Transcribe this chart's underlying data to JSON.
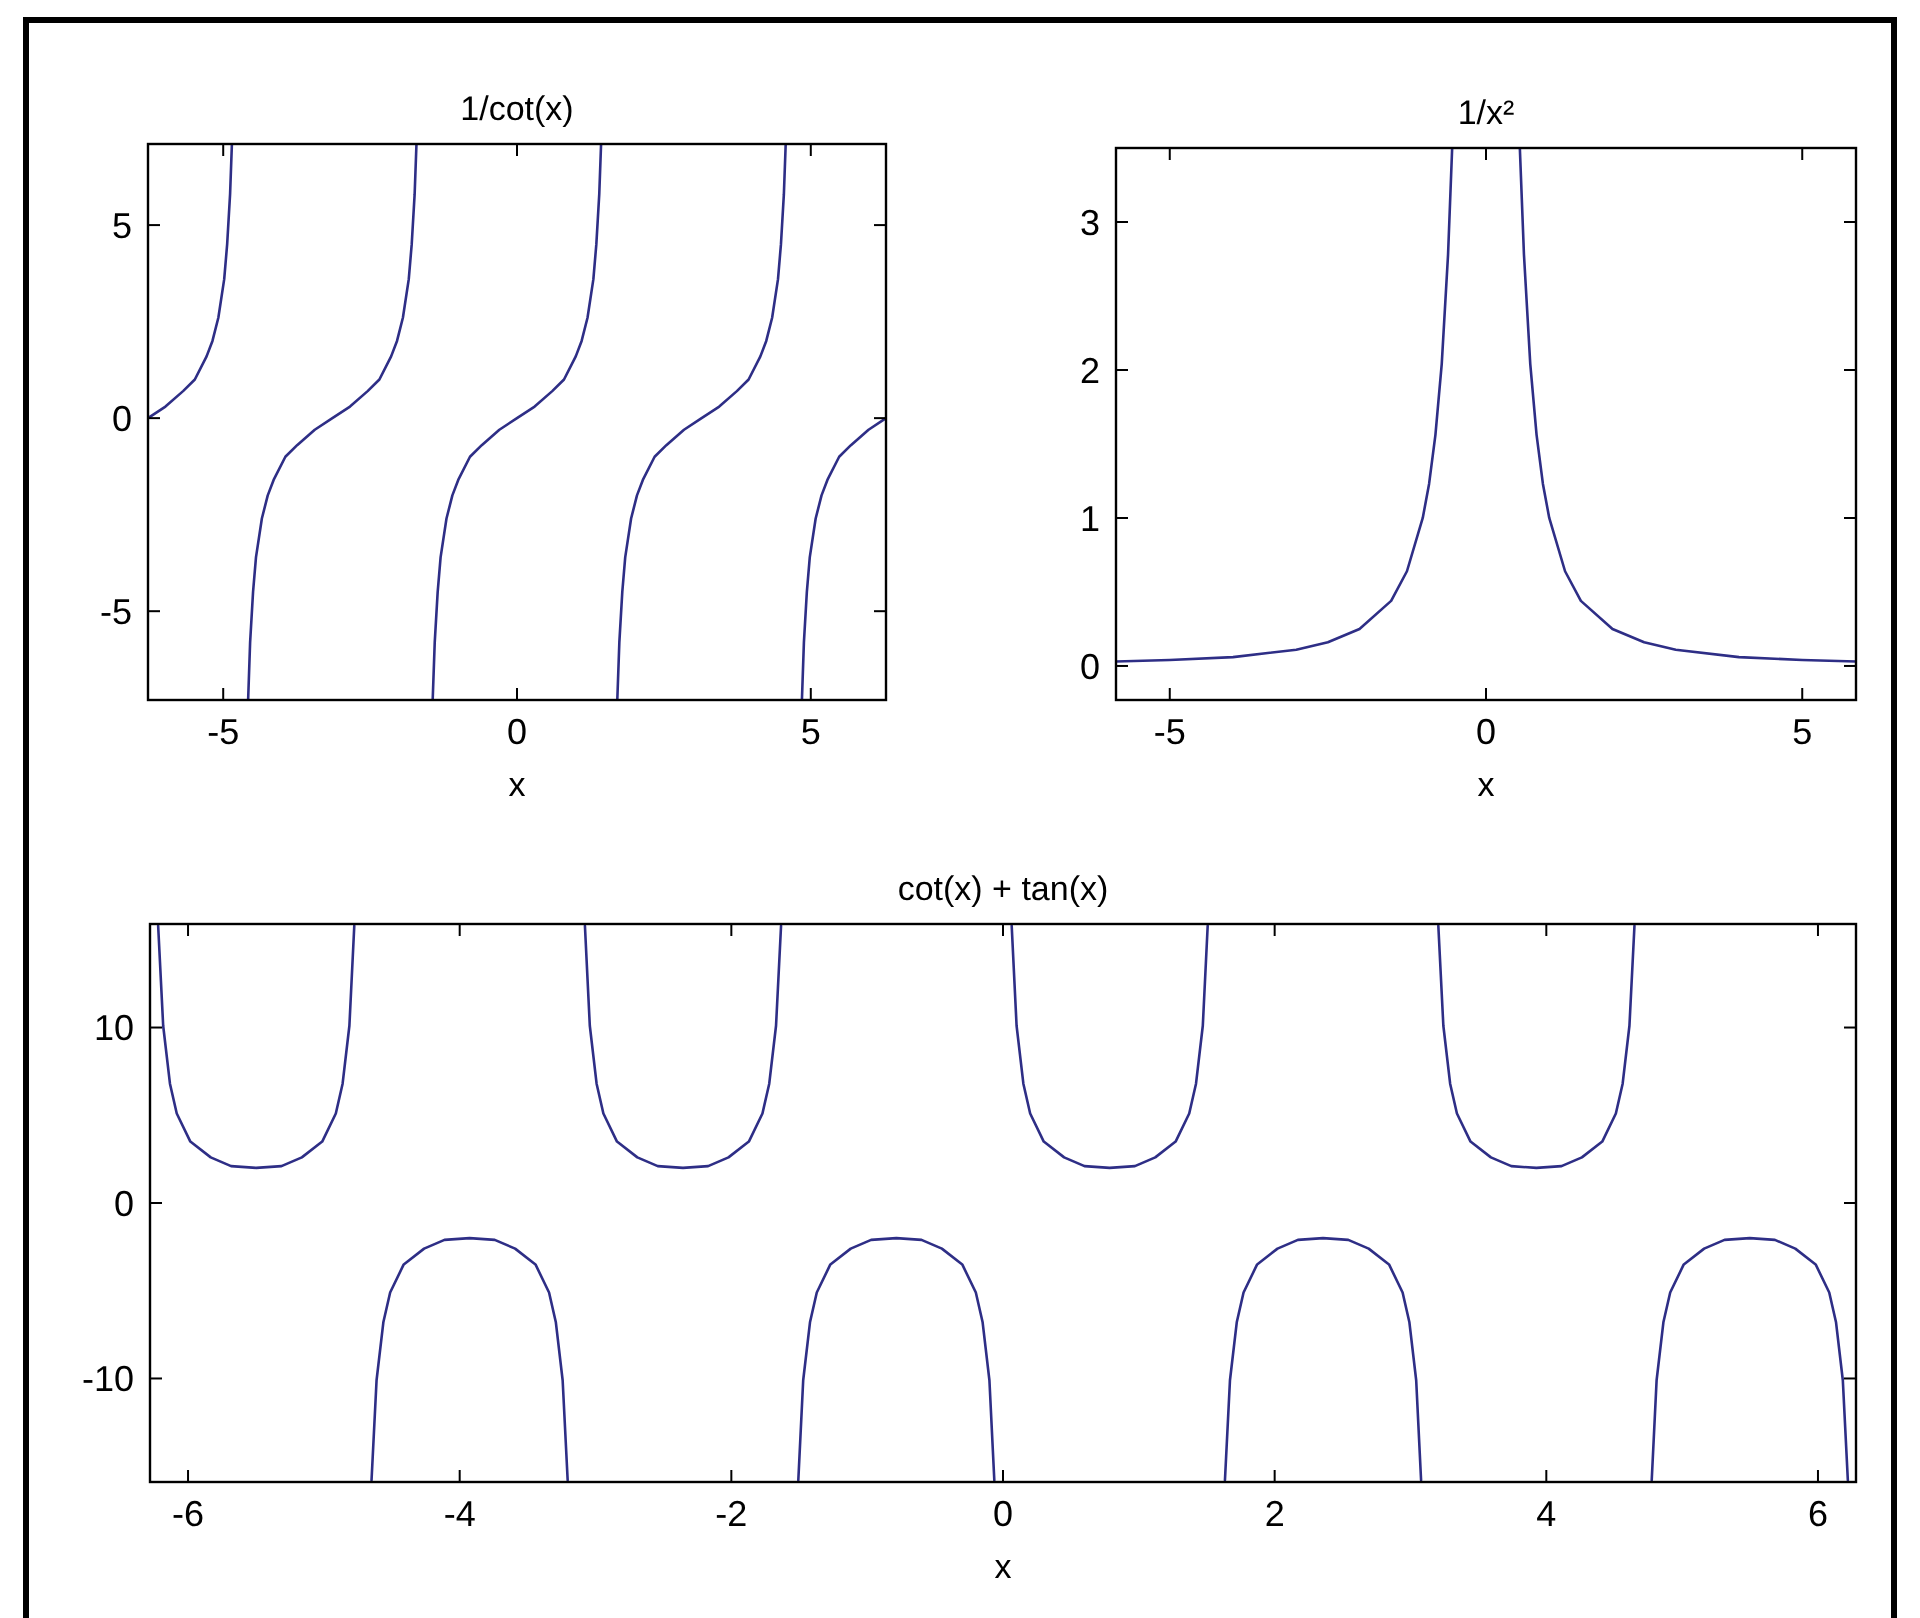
{
  "chart_data": [
    {
      "type": "line",
      "title": "1/cot(x)",
      "xlabel": "x",
      "xlim": [
        -6.28,
        6.28
      ],
      "ylim": [
        -7.3,
        7.1
      ],
      "xticks": [
        -5,
        0,
        5
      ],
      "yticks": [
        -5,
        0,
        5
      ],
      "series": [
        {
          "color": "#2e2e86",
          "x": [
            -6.28,
            -5.983,
            -5.683,
            -5.483,
            -5.283,
            -5.183,
            -5.083,
            -4.983,
            -4.933,
            -4.883,
            -4.852
          ],
          "values": [
            0,
            0.3,
            0.7,
            1,
            1.6,
            2,
            2.6,
            3.6,
            4.5,
            5.8,
            7.1
          ]
        },
        {
          "color": "#2e2e86",
          "x": [
            -4.576,
            -4.542,
            -4.492,
            -4.442,
            -4.342,
            -4.242,
            -4.142,
            -3.942,
            -3.742,
            -3.442,
            -3.142,
            -2.842,
            -2.542,
            -2.342,
            -2.142,
            -2.042,
            -1.942,
            -1.842,
            -1.792,
            -1.742,
            -1.711
          ],
          "values": [
            -7.3,
            -5.8,
            -4.5,
            -3.6,
            -2.6,
            -2,
            -1.6,
            -1,
            -0.7,
            -0.3,
            0,
            0.3,
            0.7,
            1,
            1.6,
            2,
            2.6,
            3.6,
            4.5,
            5.8,
            7.1
          ]
        },
        {
          "color": "#2e2e86",
          "x": [
            -1.435,
            -1.4,
            -1.35,
            -1.3,
            -1.2,
            -1.1,
            -1,
            -0.8,
            -0.6,
            -0.3,
            0,
            0.3,
            0.6,
            0.8,
            1,
            1.1,
            1.2,
            1.3,
            1.35,
            1.4,
            1.431
          ],
          "values": [
            -7.3,
            -5.8,
            -4.5,
            -3.6,
            -2.6,
            -2,
            -1.6,
            -1,
            -0.7,
            -0.3,
            0,
            0.3,
            0.7,
            1,
            1.6,
            2,
            2.6,
            3.6,
            4.5,
            5.8,
            7.1
          ]
        },
        {
          "color": "#2e2e86",
          "x": [
            1.707,
            1.742,
            1.792,
            1.842,
            1.942,
            2.042,
            2.142,
            2.342,
            2.542,
            2.842,
            3.142,
            3.442,
            3.742,
            3.942,
            4.142,
            4.242,
            4.342,
            4.442,
            4.492,
            4.542,
            4.573
          ],
          "values": [
            -7.3,
            -5.8,
            -4.5,
            -3.6,
            -2.6,
            -2,
            -1.6,
            -1,
            -0.7,
            -0.3,
            0,
            0.3,
            0.7,
            1,
            1.6,
            2,
            2.6,
            3.6,
            4.5,
            5.8,
            7.1
          ]
        },
        {
          "color": "#2e2e86",
          "x": [
            4.849,
            4.883,
            4.933,
            4.983,
            5.083,
            5.183,
            5.283,
            5.483,
            5.683,
            5.983,
            6.28
          ],
          "values": [
            -7.3,
            -5.8,
            -4.5,
            -3.6,
            -2.6,
            -2,
            -1.6,
            -1,
            -0.7,
            -0.3,
            0
          ]
        }
      ]
    },
    {
      "type": "line",
      "title": "1/x²",
      "xlabel": "x",
      "xlim": [
        -5.85,
        5.85
      ],
      "ylim": [
        -0.23,
        3.5
      ],
      "xticks": [
        -5,
        0,
        5
      ],
      "yticks": [
        0,
        1,
        2,
        3
      ],
      "series": [
        {
          "color": "#2e2e86",
          "x": [
            -5.85,
            -5,
            -4,
            -3,
            -2.5,
            -2,
            -1.5,
            -1.25,
            -1,
            -0.9,
            -0.8,
            -0.7,
            -0.6,
            -0.535
          ],
          "values": [
            0.03,
            0.04,
            0.06,
            0.11,
            0.16,
            0.25,
            0.44,
            0.64,
            1,
            1.23,
            1.56,
            2.04,
            2.78,
            3.5
          ]
        },
        {
          "color": "#2e2e86",
          "x": [
            0.535,
            0.6,
            0.7,
            0.8,
            0.9,
            1,
            1.25,
            1.5,
            2,
            2.5,
            3,
            4,
            5,
            5.85
          ],
          "values": [
            3.5,
            2.78,
            2.04,
            1.56,
            1.23,
            1,
            0.64,
            0.44,
            0.25,
            0.16,
            0.11,
            0.06,
            0.04,
            0.03
          ]
        }
      ]
    },
    {
      "type": "line",
      "title": "cot(x) + tan(x)",
      "xlabel": "x",
      "xlim": [
        -6.28,
        6.28
      ],
      "ylim": [
        -15.9,
        15.9
      ],
      "xticks": [
        -6,
        -4,
        -2,
        0,
        2,
        4,
        6
      ],
      "yticks": [
        -10,
        0,
        10
      ],
      "series": [
        {
          "color": "#2e2e86",
          "x": [
            -6.22,
            -6.183,
            -6.133,
            -6.083,
            -5.983,
            -5.833,
            -5.683,
            -5.498,
            -5.312,
            -5.162,
            -5.012,
            -4.912,
            -4.862,
            -4.812,
            -4.776
          ],
          "values": [
            15.8,
            10.1,
            6.8,
            5.1,
            3.5,
            2.6,
            2.1,
            2,
            2.1,
            2.6,
            3.5,
            5.1,
            6.8,
            10.1,
            15.8
          ]
        },
        {
          "color": "#2e2e86",
          "x": [
            -4.649,
            -4.612,
            -4.562,
            -4.512,
            -4.412,
            -4.262,
            -4.112,
            -3.927,
            -3.742,
            -3.592,
            -3.442,
            -3.342,
            -3.292,
            -3.242,
            -3.205
          ],
          "values": [
            -15.8,
            -10.1,
            -6.8,
            -5.1,
            -3.5,
            -2.6,
            -2.1,
            -2,
            -2.1,
            -2.6,
            -3.5,
            -5.1,
            -6.8,
            -10.1,
            -15.8
          ]
        },
        {
          "color": "#2e2e86",
          "x": [
            -3.078,
            -3.042,
            -2.992,
            -2.942,
            -2.842,
            -2.692,
            -2.542,
            -2.356,
            -2.171,
            -2.021,
            -1.871,
            -1.771,
            -1.721,
            -1.671,
            -1.634
          ],
          "values": [
            15.8,
            10.1,
            6.8,
            5.1,
            3.5,
            2.6,
            2.1,
            2,
            2.1,
            2.6,
            3.5,
            5.1,
            6.8,
            10.1,
            15.8
          ]
        },
        {
          "color": "#2e2e86",
          "x": [
            -1.507,
            -1.471,
            -1.421,
            -1.371,
            -1.271,
            -1.121,
            -0.971,
            -0.785,
            -0.6,
            -0.45,
            -0.3,
            -0.2,
            -0.15,
            -0.1,
            -0.064
          ],
          "values": [
            -15.8,
            -10.1,
            -6.8,
            -5.1,
            -3.5,
            -2.6,
            -2.1,
            -2,
            -2.1,
            -2.6,
            -3.5,
            -5.1,
            -6.8,
            -10.1,
            -15.8
          ]
        },
        {
          "color": "#2e2e86",
          "x": [
            0.064,
            0.1,
            0.15,
            0.2,
            0.3,
            0.45,
            0.6,
            0.785,
            0.971,
            1.121,
            1.271,
            1.371,
            1.421,
            1.471,
            1.507
          ],
          "values": [
            15.8,
            10.1,
            6.8,
            5.1,
            3.5,
            2.6,
            2.1,
            2,
            2.1,
            2.6,
            3.5,
            5.1,
            6.8,
            10.1,
            15.8
          ]
        },
        {
          "color": "#2e2e86",
          "x": [
            1.634,
            1.671,
            1.721,
            1.771,
            1.871,
            2.021,
            2.171,
            2.356,
            2.542,
            2.692,
            2.842,
            2.942,
            2.992,
            3.042,
            3.078
          ],
          "values": [
            -15.8,
            -10.1,
            -6.8,
            -5.1,
            -3.5,
            -2.6,
            -2.1,
            -2,
            -2.1,
            -2.6,
            -3.5,
            -5.1,
            -6.8,
            -10.1,
            -15.8
          ]
        },
        {
          "color": "#2e2e86",
          "x": [
            3.205,
            3.242,
            3.292,
            3.342,
            3.442,
            3.592,
            3.742,
            3.927,
            4.112,
            4.262,
            4.412,
            4.512,
            4.562,
            4.612,
            4.649
          ],
          "values": [
            15.8,
            10.1,
            6.8,
            5.1,
            3.5,
            2.6,
            2.1,
            2,
            2.1,
            2.6,
            3.5,
            5.1,
            6.8,
            10.1,
            15.8
          ]
        },
        {
          "color": "#2e2e86",
          "x": [
            4.776,
            4.812,
            4.862,
            4.912,
            5.012,
            5.162,
            5.312,
            5.498,
            5.683,
            5.833,
            5.983,
            6.083,
            6.133,
            6.183,
            6.22
          ],
          "values": [
            -15.8,
            -10.1,
            -6.8,
            -5.1,
            -3.5,
            -2.6,
            -2.1,
            -2,
            -2.1,
            -2.6,
            -3.5,
            -5.1,
            -6.8,
            -10.1,
            -15.8
          ]
        }
      ]
    }
  ]
}
